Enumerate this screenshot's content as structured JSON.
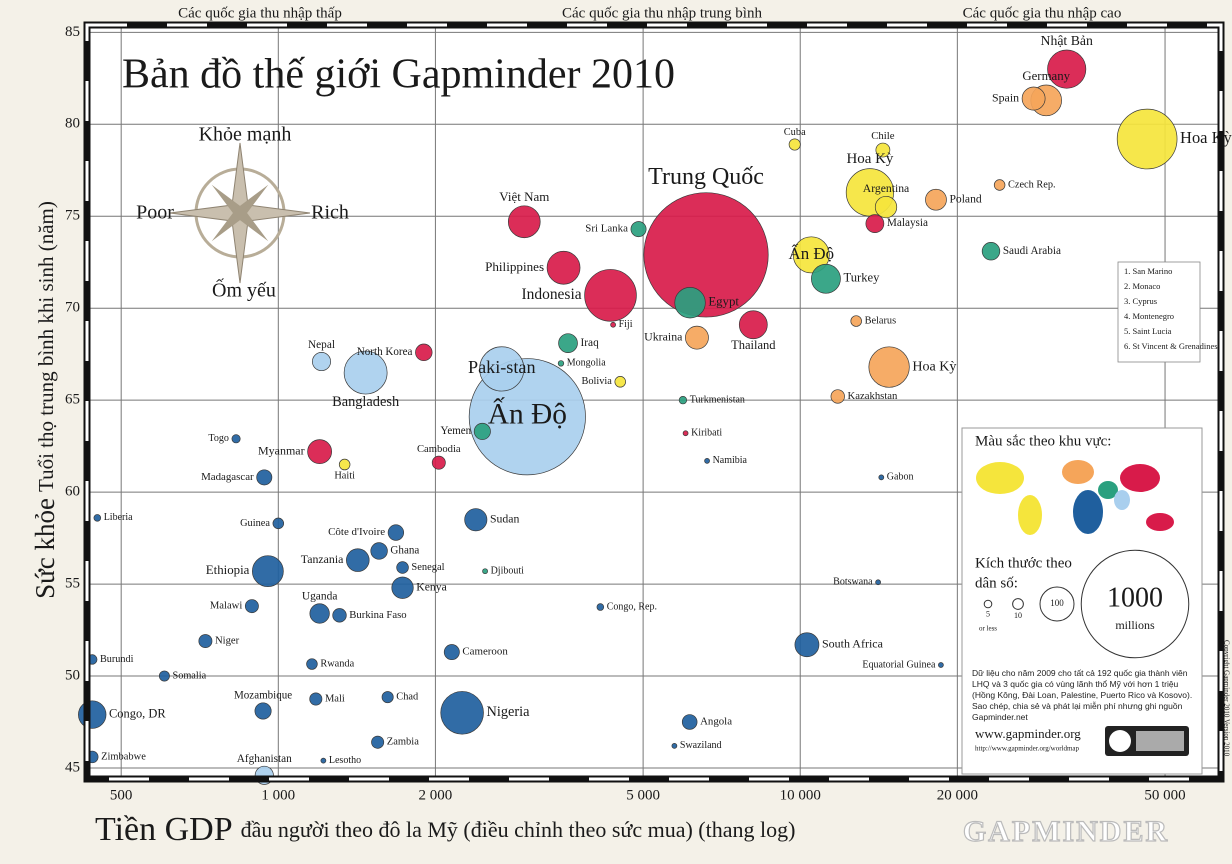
{
  "chart_data": {
    "type": "bubble",
    "title": "Bản đồ thế giới Gapminder 2010",
    "income_bands": [
      "Các quốc gia thu nhập thấp",
      "Các quốc gia thu nhập trung bình",
      "Các quốc gia thu nhập cao"
    ],
    "compass": {
      "up": "Khỏe mạnh",
      "left": "Poor",
      "right": "Rich",
      "down": "Ốm yếu"
    },
    "y_label": {
      "main": "Sức khỏe",
      "sub": "Tuổi thọ trung bình khi sinh (năm)"
    },
    "x_label": {
      "main": "Tiền GDP",
      "sub": "đầu người theo đô la Mỹ (điều chỉnh theo sức mua) (thang log)"
    },
    "log_x": true,
    "grid": true,
    "xlim": [
      430,
      64000
    ],
    "ylim": [
      44.4,
      85.4
    ],
    "xticks": [
      500,
      {
        "value": 1000,
        "label": "1 000"
      },
      {
        "value": 2000,
        "label": "2 000"
      },
      {
        "value": 5000,
        "label": "5 000"
      },
      {
        "value": 10000,
        "label": "10 000"
      },
      {
        "value": 20000,
        "label": "20 000"
      },
      {
        "value": 50000,
        "label": "50 000"
      }
    ],
    "yticks": [
      45,
      50,
      55,
      60,
      65,
      70,
      75,
      80,
      85
    ],
    "points": [
      {
        "label": "Trung Quốc",
        "x": 6600,
        "y": 72.9,
        "size": 1338,
        "color": "#d81b4a"
      },
      {
        "label": "Ấn Độ",
        "x": 3000,
        "y": 64.1,
        "size": 1171,
        "color": "#a9cfee"
      },
      {
        "label": "Hoa Kỳ",
        "x": 46200,
        "y": 79.2,
        "size": 310,
        "color": "#f5e53c"
      },
      {
        "label": "Nhật Bản",
        "x": 32400,
        "y": 83.0,
        "size": 127,
        "color": "#d81b4a"
      },
      {
        "label": "Indonesia",
        "x": 4330,
        "y": 70.7,
        "size": 232,
        "color": "#d81b4a"
      },
      {
        "label": "Hoa Kỳ",
        "x": 13600,
        "y": 76.3,
        "size": 195,
        "color": "#f5e53c"
      },
      {
        "label": "Paki-stan",
        "x": 2680,
        "y": 66.7,
        "size": 170,
        "color": "#a9cfee"
      },
      {
        "label": "Bangladesh",
        "x": 1470,
        "y": 66.5,
        "size": 160,
        "color": "#a9cfee"
      },
      {
        "label": "Nigeria",
        "x": 2250,
        "y": 48.0,
        "size": 158,
        "color": "#1f5f9e"
      },
      {
        "label": "Hoa Kỳ",
        "x": 14800,
        "y": 66.8,
        "size": 142,
        "color": "#f5a55a"
      },
      {
        "label": "Ấn Độ",
        "x": 10500,
        "y": 72.9,
        "size": 113,
        "color": "#f5e53c"
      },
      {
        "label": "Philippines",
        "x": 3520,
        "y": 72.2,
        "size": 94,
        "color": "#d81b4a"
      },
      {
        "label": "Việt Nam",
        "x": 2960,
        "y": 74.7,
        "size": 88,
        "color": "#d81b4a"
      },
      {
        "label": "Ethiopia",
        "x": 955,
        "y": 55.7,
        "size": 83,
        "color": "#1f5f9e"
      },
      {
        "label": "Egypt",
        "x": 6150,
        "y": 70.3,
        "size": 81,
        "color": "#2aa07f"
      },
      {
        "label": "Germany",
        "x": 29600,
        "y": 81.3,
        "size": 82,
        "color": "#f5a55a"
      },
      {
        "label": "Thailand",
        "x": 8130,
        "y": 69.1,
        "size": 68,
        "color": "#d81b4a"
      },
      {
        "label": "Congo, DR",
        "x": 440,
        "y": 47.9,
        "size": 66,
        "color": "#1f5f9e"
      },
      {
        "label": "Turkey",
        "x": 11200,
        "y": 71.6,
        "size": 73,
        "color": "#2aa07f"
      },
      {
        "label": "Sudan",
        "x": 2390,
        "y": 58.5,
        "size": 43,
        "color": "#1f5f9e"
      },
      {
        "label": "South Africa",
        "x": 10300,
        "y": 51.7,
        "size": 50,
        "color": "#1f5f9e"
      },
      {
        "label": "Kenya",
        "x": 1730,
        "y": 54.8,
        "size": 40,
        "color": "#1f5f9e"
      },
      {
        "label": "Tanzania",
        "x": 1420,
        "y": 56.3,
        "size": 45,
        "color": "#1f5f9e"
      },
      {
        "label": "Myanmar",
        "x": 1200,
        "y": 62.2,
        "size": 50,
        "color": "#d81b4a"
      },
      {
        "label": "Ukraina",
        "x": 6340,
        "y": 68.4,
        "size": 46,
        "color": "#f5a55a"
      },
      {
        "label": "Iraq",
        "x": 3590,
        "y": 68.1,
        "size": 31,
        "color": "#2aa07f"
      },
      {
        "label": "Uganda",
        "x": 1200,
        "y": 53.4,
        "size": 33,
        "color": "#1f5f9e"
      },
      {
        "label": "Afghanistan",
        "x": 940,
        "y": 44.6,
        "size": 29,
        "color": "#a9cfee"
      },
      {
        "label": "Saudi Arabia",
        "x": 23200,
        "y": 73.1,
        "size": 27,
        "color": "#2aa07f"
      },
      {
        "label": "Argentina",
        "x": 14600,
        "y": 75.5,
        "size": 40,
        "color": "#f5e53c"
      },
      {
        "label": "Poland",
        "x": 18200,
        "y": 75.9,
        "size": 38,
        "color": "#f5a55a"
      },
      {
        "label": "Kazakhstan",
        "x": 11800,
        "y": 65.2,
        "size": 16,
        "color": "#f5a55a"
      },
      {
        "label": "Cameroon",
        "x": 2150,
        "y": 51.3,
        "size": 20,
        "color": "#1f5f9e"
      },
      {
        "label": "Angola",
        "x": 6140,
        "y": 47.5,
        "size": 19,
        "color": "#1f5f9e"
      },
      {
        "label": "Mali",
        "x": 1180,
        "y": 48.75,
        "size": 13,
        "color": "#1f5f9e"
      },
      {
        "label": "Chad",
        "x": 1620,
        "y": 48.85,
        "size": 11,
        "color": "#1f5f9e"
      },
      {
        "label": "Zambia",
        "x": 1550,
        "y": 46.4,
        "size": 13,
        "color": "#1f5f9e"
      },
      {
        "label": "Ghana",
        "x": 1560,
        "y": 56.8,
        "size": 24,
        "color": "#1f5f9e"
      },
      {
        "label": "Madagascar",
        "x": 940,
        "y": 60.8,
        "size": 20,
        "color": "#1f5f9e"
      },
      {
        "label": "Guinea",
        "x": 1000,
        "y": 58.3,
        "size": 10,
        "color": "#1f5f9e"
      },
      {
        "label": "Malawi",
        "x": 890,
        "y": 53.8,
        "size": 15,
        "color": "#1f5f9e"
      },
      {
        "label": "Niger",
        "x": 725,
        "y": 51.9,
        "size": 15,
        "color": "#1f5f9e"
      },
      {
        "label": "Burkina Faso",
        "x": 1310,
        "y": 53.3,
        "size": 16,
        "color": "#1f5f9e"
      },
      {
        "label": "Côte d'Ivoire",
        "x": 1680,
        "y": 57.8,
        "size": 21,
        "color": "#1f5f9e"
      },
      {
        "label": "Mozambique",
        "x": 935,
        "y": 48.1,
        "size": 23,
        "color": "#1f5f9e"
      },
      {
        "label": "Zimbabwe",
        "x": 440,
        "y": 45.6,
        "size": 12,
        "color": "#1f5f9e"
      },
      {
        "label": "Cambodia",
        "x": 2030,
        "y": 61.6,
        "size": 15,
        "color": "#d81b4a"
      },
      {
        "label": "Nepal",
        "x": 1210,
        "y": 67.1,
        "size": 29,
        "color": "#a9cfee"
      },
      {
        "label": "Sri Lanka",
        "x": 4900,
        "y": 74.3,
        "size": 20,
        "color": "#2aa07f"
      },
      {
        "label": "Chile",
        "x": 14400,
        "y": 78.6,
        "size": 17,
        "color": "#f5e53c"
      },
      {
        "label": "Cuba",
        "x": 9760,
        "y": 78.9,
        "size": 11,
        "color": "#f5e53c"
      },
      {
        "label": "Belarus",
        "x": 12800,
        "y": 69.3,
        "size": 10,
        "color": "#f5a55a"
      },
      {
        "label": "Malaysia",
        "x": 13900,
        "y": 74.6,
        "size": 28,
        "color": "#d81b4a"
      },
      {
        "label": "Spain",
        "x": 28000,
        "y": 81.4,
        "size": 46,
        "color": "#f5a55a"
      },
      {
        "label": "Czech Rep.",
        "x": 24100,
        "y": 76.7,
        "size": 10,
        "color": "#f5a55a"
      },
      {
        "label": "Burundi",
        "x": 440,
        "y": 50.9,
        "size": 8,
        "color": "#1f5f9e"
      },
      {
        "label": "Liberia",
        "x": 450,
        "y": 58.6,
        "size": 4,
        "color": "#1f5f9e"
      },
      {
        "label": "Somalia",
        "x": 605,
        "y": 50.0,
        "size": 9,
        "color": "#1f5f9e"
      },
      {
        "label": "Haiti",
        "x": 1340,
        "y": 61.5,
        "size": 10,
        "color": "#f5e53c"
      },
      {
        "label": "Gabon",
        "x": 14300,
        "y": 60.8,
        "size": 1.5,
        "color": "#1f5f9e"
      },
      {
        "label": "Botswana",
        "x": 14100,
        "y": 55.1,
        "size": 2,
        "color": "#1f5f9e"
      },
      {
        "label": "Equatorial Guinea",
        "x": 18600,
        "y": 50.6,
        "size": 0.7,
        "color": "#1f5f9e"
      },
      {
        "label": "Congo, Rep.",
        "x": 4140,
        "y": 53.75,
        "size": 4,
        "color": "#1f5f9e"
      },
      {
        "label": "Djibouti",
        "x": 2490,
        "y": 55.7,
        "size": 0.9,
        "color": "#2aa07f"
      },
      {
        "label": "Namibia",
        "x": 6630,
        "y": 61.7,
        "size": 2,
        "color": "#1f5f9e"
      },
      {
        "label": "Lesotho",
        "x": 1220,
        "y": 45.4,
        "size": 2,
        "color": "#1f5f9e"
      },
      {
        "label": "Swaziland",
        "x": 5740,
        "y": 46.2,
        "size": 1.2,
        "color": "#1f5f9e"
      },
      {
        "label": "Senegal",
        "x": 1730,
        "y": 55.9,
        "size": 12,
        "color": "#1f5f9e"
      },
      {
        "label": "Rwanda",
        "x": 1160,
        "y": 50.65,
        "size": 10,
        "color": "#1f5f9e"
      },
      {
        "label": "Togo",
        "x": 830,
        "y": 62.9,
        "size": 6,
        "color": "#1f5f9e"
      },
      {
        "label": "Mongolia",
        "x": 3480,
        "y": 67.0,
        "size": 2.7,
        "color": "#2aa07f"
      },
      {
        "label": "North Korea",
        "x": 1900,
        "y": 67.6,
        "size": 24,
        "color": "#d81b4a"
      },
      {
        "label": "Fiji",
        "x": 4380,
        "y": 69.1,
        "size": 0.85,
        "color": "#d81b4a"
      },
      {
        "label": "Yemen",
        "x": 2460,
        "y": 63.3,
        "size": 23,
        "color": "#2aa07f"
      },
      {
        "label": "Bolivia",
        "x": 4520,
        "y": 66.0,
        "size": 10,
        "color": "#f5e53c"
      },
      {
        "label": "Kiribati",
        "x": 6030,
        "y": 63.2,
        "size": 0.1,
        "color": "#d81b4a"
      },
      {
        "label": "Turkmenistan",
        "x": 5960,
        "y": 65.0,
        "size": 5,
        "color": "#2aa07f"
      }
    ],
    "color_legend_title": "Màu sắc theo khu vực:",
    "size_legend": {
      "title": [
        "Kích thước theo",
        "dân số:"
      ],
      "sizes": [
        5,
        10,
        100,
        1000
      ],
      "note": "or less",
      "unit": "millions"
    },
    "small_countries": [
      "1. San Marino",
      "2. Monaco",
      "3. Cyprus",
      "4. Montenegro",
      "5. Saint Lucia",
      "6. St Vincent & Grenadines"
    ],
    "note": "Dữ liệu cho năm 2009 cho tất cả 192 quốc gia thành viên LHQ và 3 quốc gia có vùng lãnh thổ Mỹ với hơn 1 triệu (Hồng Kông, Đài Loan, Palestine, Puerto Rico và Kosovo). Sao chép, chia sẻ và phát lại miễn phí nhưng ghi nguồn Gapminder.net",
    "website": "www.gapminder.org",
    "url": "http://www.gapminder.org/worldmap",
    "copyright": "Copyright Gapminder 2010 Version 2010",
    "watermark": "GAPMINDER"
  }
}
